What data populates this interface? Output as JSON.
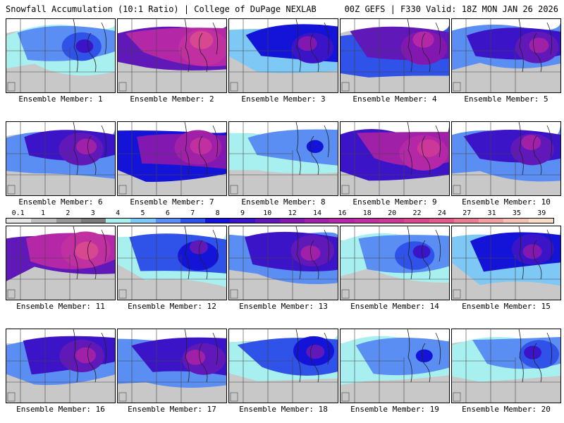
{
  "header": {
    "title_left": "Snowfall Accumulation (10:1 Ratio) | College of DuPage NEXLAB",
    "title_right": "00Z GEFS | F330 Valid: 18Z MON JAN 26 2026"
  },
  "members": [
    {
      "label": "Ensemble Member: 1",
      "intensity": 0.45
    },
    {
      "label": "Ensemble Member: 2",
      "intensity": 0.85
    },
    {
      "label": "Ensemble Member: 3",
      "intensity": 0.55
    },
    {
      "label": "Ensemble Member: 4",
      "intensity": 0.7
    },
    {
      "label": "Ensemble Member: 5",
      "intensity": 0.6
    },
    {
      "label": "Ensemble Member: 6",
      "intensity": 0.65
    },
    {
      "label": "Ensemble Member: 7",
      "intensity": 0.75
    },
    {
      "label": "Ensemble Member: 8",
      "intensity": 0.4
    },
    {
      "label": "Ensemble Member: 9",
      "intensity": 0.8
    },
    {
      "label": "Ensemble Member: 10",
      "intensity": 0.6
    },
    {
      "label": "Ensemble Member: 11",
      "intensity": 0.85
    },
    {
      "label": "Ensemble Member: 12",
      "intensity": 0.5
    },
    {
      "label": "Ensemble Member: 13",
      "intensity": 0.6
    },
    {
      "label": "Ensemble Member: 14",
      "intensity": 0.45
    },
    {
      "label": "Ensemble Member: 15",
      "intensity": 0.55
    },
    {
      "label": "Ensemble Member: 16",
      "intensity": 0.65
    },
    {
      "label": "Ensemble Member: 17",
      "intensity": 0.6
    },
    {
      "label": "Ensemble Member: 18",
      "intensity": 0.5
    },
    {
      "label": "Ensemble Member: 19",
      "intensity": 0.4
    },
    {
      "label": "Ensemble Member: 20",
      "intensity": 0.45
    }
  ],
  "colorbar": {
    "labels": [
      "0.1",
      "1",
      "2",
      "3",
      "4",
      "5",
      "6",
      "7",
      "8",
      "9",
      "10",
      "12",
      "14",
      "16",
      "18",
      "20",
      "22",
      "24",
      "27",
      "31",
      "35",
      "39"
    ],
    "colors": [
      "#e6e6e6",
      "#bfbfbf",
      "#969696",
      "#7a7a7a",
      "#a8f0f0",
      "#7ec8f5",
      "#5a8ef2",
      "#2f52e8",
      "#1414d8",
      "#3c14c8",
      "#6018b8",
      "#8218b0",
      "#a020a8",
      "#b428a8",
      "#c030a0",
      "#cc3898",
      "#d84890",
      "#e45a8c",
      "#e87c90",
      "#f0a0a0",
      "#f4c0b0",
      "#f8dcc8"
    ]
  }
}
